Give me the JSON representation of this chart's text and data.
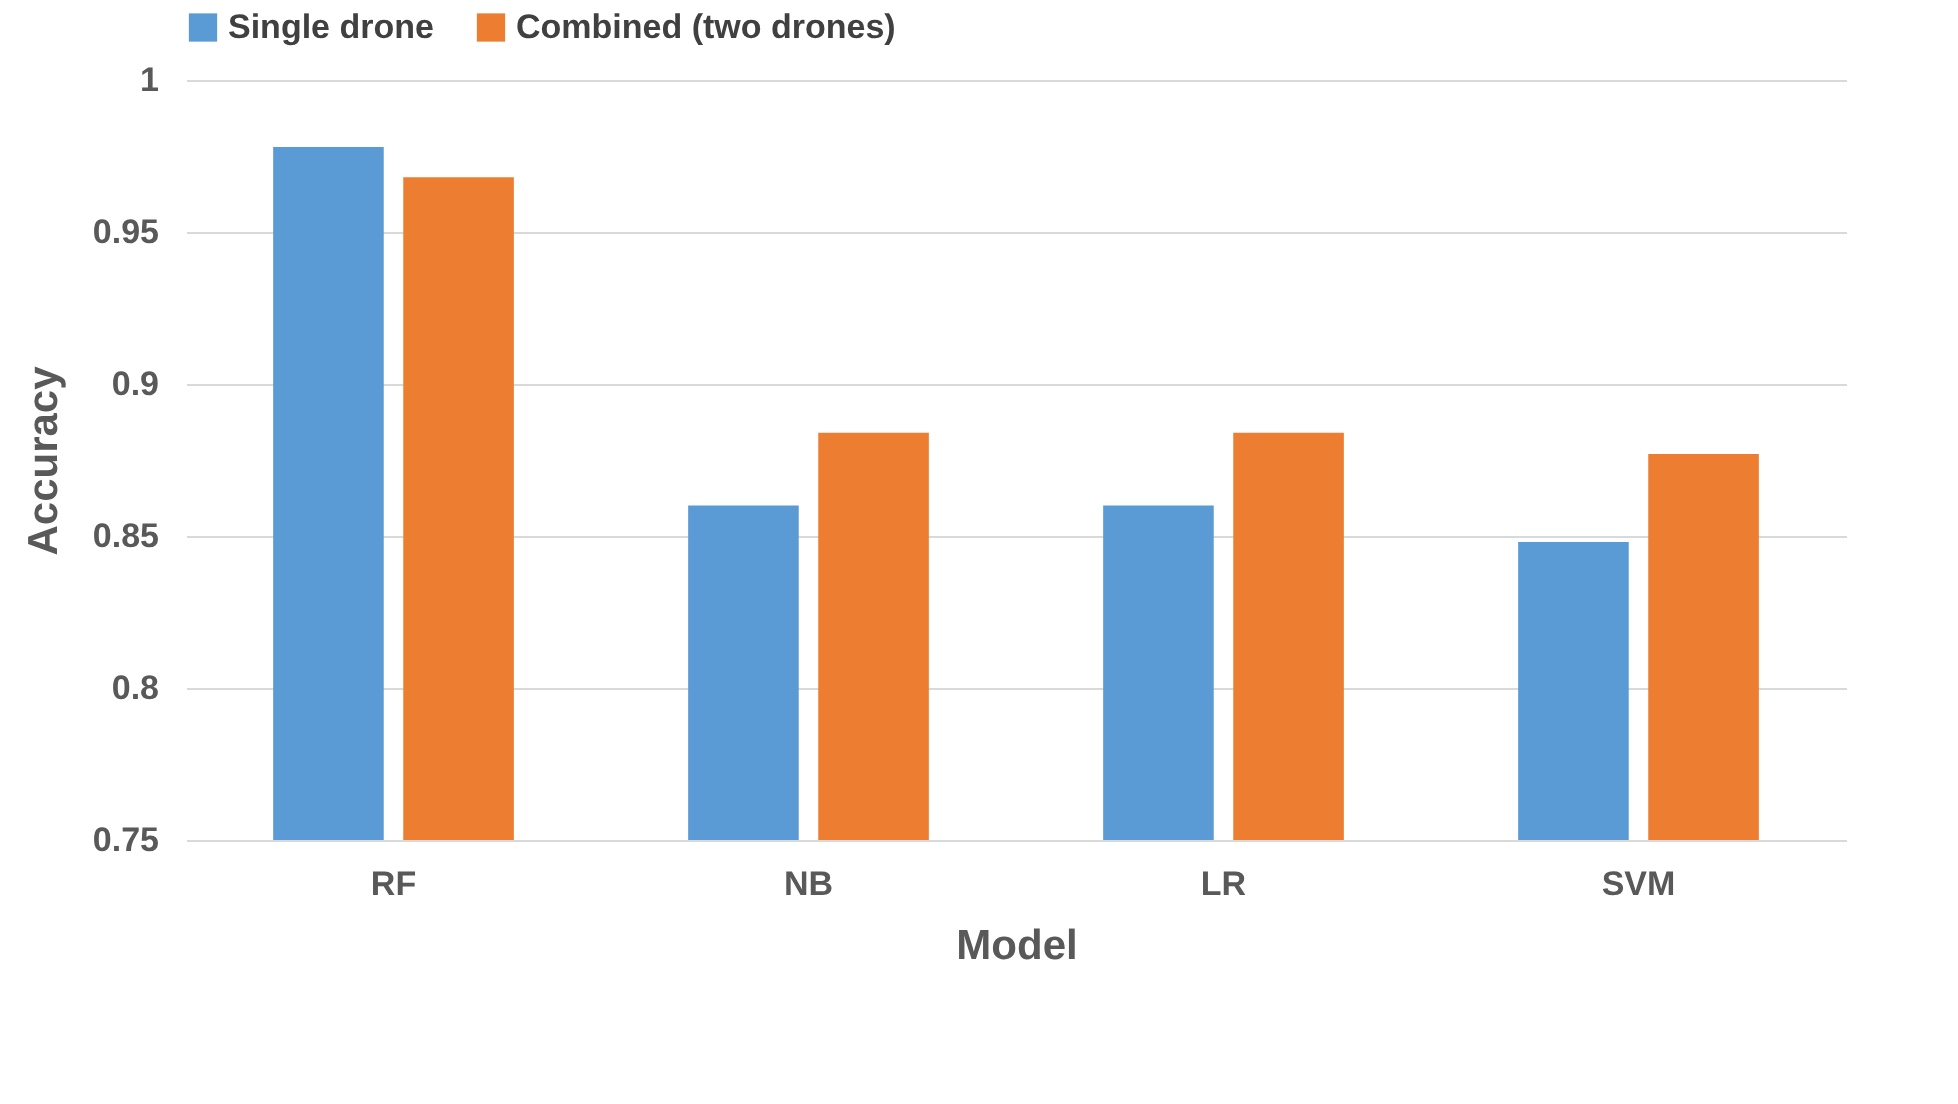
{
  "chart_data": {
    "type": "bar",
    "xlabel": "Model",
    "ylabel": "Accuracy",
    "categories": [
      "RF",
      "NB",
      "LR",
      "SVM"
    ],
    "series": [
      {
        "name": "Single drone",
        "color": "#5b9bd5",
        "values": [
          0.978,
          0.86,
          0.86,
          0.848
        ]
      },
      {
        "name": "Combined (two drones)",
        "color": "#ed7d31",
        "values": [
          0.968,
          0.884,
          0.884,
          0.877
        ]
      }
    ],
    "ylim": [
      0.75,
      1
    ],
    "yticks": [
      0.75,
      0.8,
      0.85,
      0.9,
      0.95,
      1
    ],
    "grid": "y",
    "legend": "top"
  }
}
